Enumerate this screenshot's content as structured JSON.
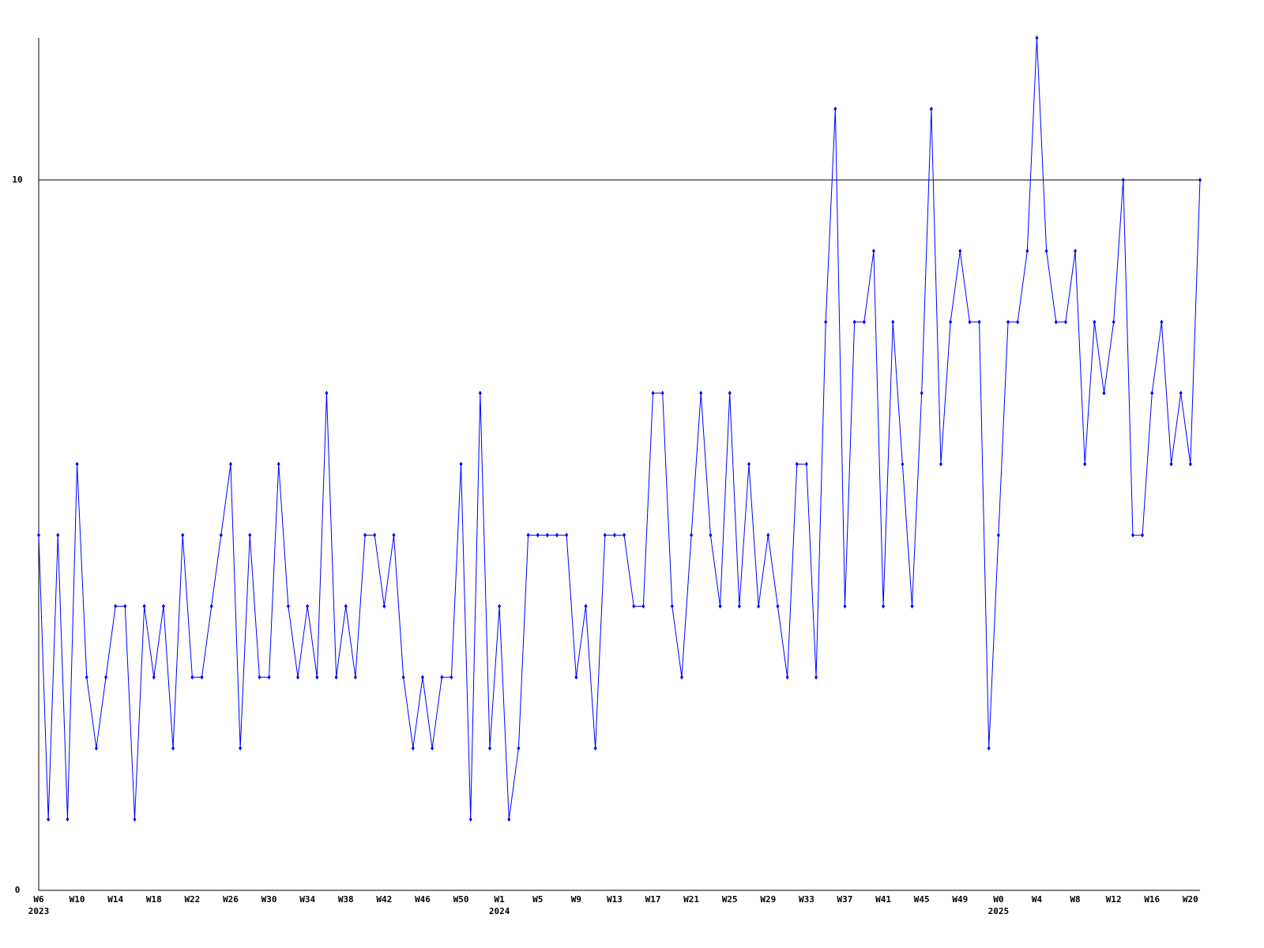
{
  "chart_data": {
    "type": "line",
    "categories": [
      "W6",
      null,
      null,
      null,
      "W10",
      null,
      null,
      null,
      "W14",
      null,
      null,
      null,
      "W18",
      null,
      null,
      null,
      "W22",
      null,
      null,
      null,
      "W26",
      null,
      null,
      null,
      "W30",
      null,
      null,
      null,
      "W34",
      null,
      null,
      null,
      "W38",
      null,
      null,
      null,
      "W42",
      null,
      null,
      null,
      "W46",
      null,
      null,
      null,
      "W50",
      null,
      null,
      null,
      "W1",
      null,
      null,
      null,
      "W5",
      null,
      null,
      null,
      "W9",
      null,
      null,
      null,
      "W13",
      null,
      null,
      null,
      "W17",
      null,
      null,
      null,
      "W21",
      null,
      null,
      null,
      "W25",
      null,
      null,
      null,
      "W29",
      null,
      null,
      null,
      "W33",
      null,
      null,
      null,
      "W37",
      null,
      null,
      null,
      "W41",
      null,
      null,
      null,
      "W45",
      null,
      null,
      null,
      "W49",
      null,
      null,
      null,
      "W0",
      null,
      null,
      null,
      "W4",
      null,
      null,
      null,
      "W8",
      null,
      null,
      null,
      "W12",
      null,
      null,
      null,
      "W16",
      null,
      null,
      null,
      "W20",
      null
    ],
    "category_years": [
      "2023",
      null,
      null,
      null,
      null,
      null,
      null,
      null,
      null,
      null,
      null,
      null,
      null,
      null,
      null,
      null,
      null,
      null,
      null,
      null,
      null,
      null,
      null,
      null,
      null,
      null,
      null,
      null,
      null,
      null,
      null,
      null,
      null,
      null,
      null,
      null,
      null,
      null,
      null,
      null,
      null,
      null,
      null,
      null,
      null,
      null,
      null,
      null,
      "2024",
      null,
      null,
      null,
      null,
      null,
      null,
      null,
      null,
      null,
      null,
      null,
      null,
      null,
      null,
      null,
      null,
      null,
      null,
      null,
      null,
      null,
      null,
      null,
      null,
      null,
      null,
      null,
      null,
      null,
      null,
      null,
      null,
      null,
      null,
      null,
      null,
      null,
      null,
      null,
      null,
      null,
      null,
      null,
      null,
      null,
      null,
      null,
      null,
      null,
      null,
      null,
      "2025",
      null,
      null,
      null,
      null,
      null,
      null,
      null,
      null,
      null,
      null,
      null,
      null,
      null,
      null,
      null,
      null,
      null,
      null,
      null,
      null,
      null
    ],
    "series": [
      {
        "color": "#0000ff",
        "values": [
          5,
          1,
          5,
          1,
          6,
          3,
          2,
          3,
          4,
          4,
          1,
          4,
          3,
          4,
          2,
          5,
          3,
          3,
          4,
          5,
          6,
          2,
          5,
          3,
          3,
          6,
          4,
          3,
          4,
          3,
          7,
          3,
          4,
          3,
          5,
          5,
          4,
          5,
          3,
          2,
          3,
          2,
          3,
          3,
          6,
          1,
          7,
          2,
          4,
          1,
          2,
          5,
          5,
          5,
          5,
          5,
          3,
          4,
          2,
          5,
          5,
          5,
          4,
          4,
          7,
          7,
          4,
          3,
          5,
          7,
          5,
          4,
          7,
          4,
          6,
          4,
          5,
          4,
          3,
          6,
          6,
          3,
          8,
          11,
          4,
          8,
          8,
          9,
          4,
          8,
          6,
          4,
          7,
          11,
          6,
          8,
          9,
          8,
          8,
          2,
          5,
          8,
          8,
          9,
          12,
          9,
          8,
          8,
          9,
          6,
          8,
          7,
          8,
          10,
          5,
          5,
          7,
          8,
          6,
          7,
          6,
          10
        ]
      }
    ],
    "ylim": [
      0,
      12
    ],
    "yticks": [
      0,
      10
    ],
    "grid": true
  }
}
